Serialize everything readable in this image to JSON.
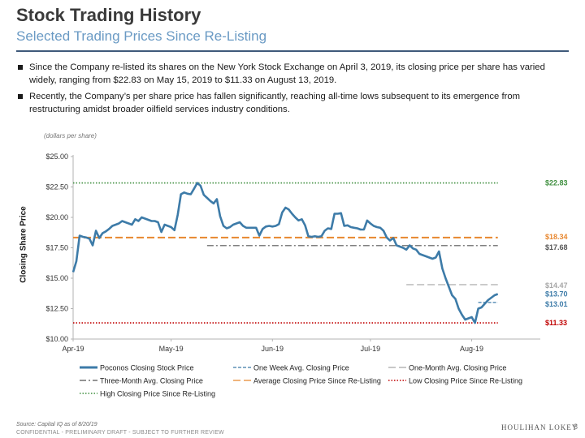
{
  "header": {
    "title": "Stock Trading History",
    "subtitle": "Selected Trading Prices Since Re-Listing"
  },
  "bullets": [
    "Since the Company re-listed its shares on the New York Stock Exchange on April 3, 2019, its closing price per share has varied widely, ranging from $22.83 on May 15, 2019 to $11.33 on August 13, 2019.",
    "Recently, the Company’s per share price has fallen significantly, reaching all-time lows subsequent to its emergence from restructuring amidst broader oilfield services industry conditions."
  ],
  "chart_units_note": "(dollars per share)",
  "footer": {
    "source": "Source: Capital IQ as of 8/20/19",
    "confidential": "CONFIDENTIAL - PRELIMINARY DRAFT - SUBJECT TO FURTHER REVIEW",
    "brand": "HOULIHAN LOKEY",
    "page_number": "8"
  },
  "colors": {
    "price": "#3d7ba8",
    "one_week": "#3d7ba8",
    "one_month": "#a6a6a6",
    "three_month": "#555555",
    "average": "#e8872f",
    "low": "#c00000",
    "high": "#3f8f3f"
  },
  "chart_data": {
    "type": "line",
    "title": "",
    "xlabel": "",
    "ylabel": "Closing Share Price",
    "ylim": [
      10,
      25
    ],
    "yticks": [
      "$10.00",
      "$12.50",
      "$15.00",
      "$17.50",
      "$20.00",
      "$22.50",
      "$25.00"
    ],
    "ytick_values": [
      10,
      12.5,
      15,
      17.5,
      20,
      22.5,
      25
    ],
    "x_range_days": [
      0,
      143
    ],
    "xticks": [
      {
        "label": "Apr-19",
        "day": 0
      },
      {
        "label": "May-19",
        "day": 30
      },
      {
        "label": "Jun-19",
        "day": 61
      },
      {
        "label": "Jul-19",
        "day": 91
      },
      {
        "label": "Aug-19",
        "day": 122
      }
    ],
    "series": [
      {
        "name": "Poconos Closing Stock Price",
        "style": "solid",
        "points": [
          [
            0,
            15.5
          ],
          [
            1,
            16.4
          ],
          [
            2,
            18.5
          ],
          [
            3,
            18.4
          ],
          [
            4,
            18.35
          ],
          [
            5,
            18.25
          ],
          [
            6,
            17.7
          ],
          [
            7,
            18.9
          ],
          [
            8,
            18.3
          ],
          [
            9,
            18.7
          ],
          [
            10,
            18.85
          ],
          [
            11,
            19.05
          ],
          [
            12,
            19.3
          ],
          [
            13,
            19.4
          ],
          [
            14,
            19.5
          ],
          [
            15,
            19.7
          ],
          [
            16,
            19.6
          ],
          [
            17,
            19.5
          ],
          [
            18,
            19.4
          ],
          [
            19,
            19.85
          ],
          [
            20,
            19.7
          ],
          [
            21,
            20.0
          ],
          [
            22,
            19.9
          ],
          [
            23,
            19.8
          ],
          [
            24,
            19.7
          ],
          [
            25,
            19.7
          ],
          [
            26,
            19.6
          ],
          [
            27,
            18.8
          ],
          [
            28,
            19.4
          ],
          [
            29,
            19.3
          ],
          [
            30,
            19.2
          ],
          [
            31,
            18.95
          ],
          [
            32,
            20.2
          ],
          [
            33,
            21.9
          ],
          [
            34,
            22.05
          ],
          [
            35,
            21.95
          ],
          [
            36,
            21.9
          ],
          [
            37,
            22.35
          ],
          [
            38,
            22.83
          ],
          [
            39,
            22.6
          ],
          [
            40,
            21.85
          ],
          [
            41,
            21.6
          ],
          [
            42,
            21.35
          ],
          [
            43,
            21.15
          ],
          [
            44,
            21.5
          ],
          [
            45,
            20.1
          ],
          [
            46,
            19.3
          ],
          [
            47,
            19.1
          ],
          [
            48,
            19.2
          ],
          [
            49,
            19.4
          ],
          [
            50,
            19.5
          ],
          [
            51,
            19.6
          ],
          [
            52,
            19.3
          ],
          [
            53,
            19.15
          ],
          [
            54,
            19.15
          ],
          [
            55,
            19.15
          ],
          [
            56,
            19.15
          ],
          [
            57,
            18.5
          ],
          [
            58,
            19.05
          ],
          [
            59,
            19.25
          ],
          [
            60,
            19.3
          ],
          [
            61,
            19.25
          ],
          [
            62,
            19.3
          ],
          [
            63,
            19.45
          ],
          [
            64,
            20.4
          ],
          [
            65,
            20.8
          ],
          [
            66,
            20.65
          ],
          [
            67,
            20.3
          ],
          [
            68,
            20.0
          ],
          [
            69,
            19.75
          ],
          [
            70,
            19.85
          ],
          [
            71,
            19.35
          ],
          [
            72,
            18.45
          ],
          [
            73,
            18.4
          ],
          [
            74,
            18.45
          ],
          [
            75,
            18.4
          ],
          [
            76,
            18.45
          ],
          [
            77,
            18.9
          ],
          [
            78,
            19.1
          ],
          [
            79,
            19.05
          ],
          [
            80,
            20.3
          ],
          [
            81,
            20.3
          ],
          [
            82,
            20.35
          ],
          [
            83,
            19.3
          ],
          [
            84,
            19.35
          ],
          [
            85,
            19.2
          ],
          [
            86,
            19.15
          ],
          [
            87,
            19.1
          ],
          [
            88,
            19.0
          ],
          [
            89,
            19.0
          ],
          [
            90,
            19.75
          ],
          [
            91,
            19.5
          ],
          [
            92,
            19.3
          ],
          [
            93,
            19.2
          ],
          [
            94,
            19.15
          ],
          [
            95,
            18.9
          ],
          [
            96,
            18.35
          ],
          [
            97,
            18.1
          ],
          [
            98,
            18.3
          ],
          [
            99,
            17.7
          ],
          [
            100,
            17.6
          ],
          [
            101,
            17.5
          ],
          [
            102,
            17.35
          ],
          [
            103,
            17.7
          ],
          [
            104,
            17.45
          ],
          [
            105,
            17.35
          ],
          [
            106,
            17.0
          ],
          [
            107,
            16.9
          ],
          [
            108,
            16.8
          ],
          [
            109,
            16.7
          ],
          [
            110,
            16.6
          ],
          [
            111,
            16.7
          ],
          [
            112,
            17.2
          ],
          [
            113,
            15.8
          ],
          [
            114,
            15.0
          ],
          [
            115,
            14.3
          ],
          [
            116,
            13.6
          ],
          [
            117,
            13.3
          ],
          [
            118,
            12.5
          ],
          [
            119,
            12.0
          ],
          [
            120,
            11.6
          ],
          [
            121,
            11.7
          ],
          [
            122,
            11.8
          ],
          [
            123,
            11.33
          ],
          [
            124,
            12.5
          ],
          [
            125,
            12.6
          ],
          [
            126,
            12.9
          ],
          [
            127,
            13.2
          ],
          [
            128,
            13.4
          ],
          [
            129,
            13.6
          ],
          [
            130,
            13.7
          ]
        ]
      },
      {
        "name": "One Week Avg. Closing Price",
        "style": "dashed",
        "value": 13.01,
        "day_range": [
          124,
          130
        ],
        "label": "$13.01"
      },
      {
        "name": "One-Month Avg. Closing Price",
        "style": "long-dashed",
        "value": 14.47,
        "day_range": [
          102,
          130
        ],
        "label": "$14.47"
      },
      {
        "name": "Three-Month Avg. Closing Price",
        "style": "dash-dot",
        "value": 17.68,
        "day_range": [
          41,
          130
        ],
        "label": "$17.68"
      },
      {
        "name": "Average Closing Price Since Re-Listing",
        "style": "long-dashed",
        "value": 18.34,
        "day_range": [
          0,
          130
        ],
        "label": "$18.34"
      },
      {
        "name": "Low Closing Price Since Re-Listing",
        "style": "dotted",
        "value": 11.33,
        "day_range": [
          0,
          130
        ],
        "label": "$11.33"
      },
      {
        "name": "High Closing Price Since Re-Listing",
        "style": "dotted",
        "value": 22.83,
        "day_range": [
          0,
          130
        ],
        "label": "$22.83"
      }
    ],
    "end_labels": [
      {
        "text": "$22.83",
        "value": 22.83,
        "color_key": "high"
      },
      {
        "text": "$18.34",
        "value": 18.34,
        "color_key": "average"
      },
      {
        "text": "$17.68",
        "value": 17.68,
        "color_key": "three_month"
      },
      {
        "text": "$14.47",
        "value": 14.47,
        "color_key": "one_month"
      },
      {
        "text": "$13.70",
        "value": 13.7,
        "color_key": "price"
      },
      {
        "text": "$13.01",
        "value": 13.01,
        "color_key": "one_week"
      },
      {
        "text": "$11.33",
        "value": 11.33,
        "color_key": "low"
      }
    ],
    "legend": {
      "position": "bottom",
      "items": [
        {
          "label": "Poconos Closing Stock Price",
          "series": 0,
          "color_key": "price",
          "style": "solid"
        },
        {
          "label": "One Week Avg. Closing Price",
          "series": 1,
          "color_key": "one_week",
          "style": "dashed"
        },
        {
          "label": "One-Month Avg. Closing Price",
          "series": 2,
          "color_key": "one_month",
          "style": "long-dashed"
        },
        {
          "label": "Three-Month Avg. Closing Price",
          "series": 3,
          "color_key": "three_month",
          "style": "dash-dot"
        },
        {
          "label": "Average Closing Price Since Re-Listing",
          "series": 4,
          "color_key": "average",
          "style": "long-dashed"
        },
        {
          "label": "Low Closing Price Since Re-Listing",
          "series": 5,
          "color_key": "low",
          "style": "dotted"
        },
        {
          "label": "High Closing Price Since Re-Listing",
          "series": 6,
          "color_key": "high",
          "style": "dotted"
        }
      ]
    }
  }
}
